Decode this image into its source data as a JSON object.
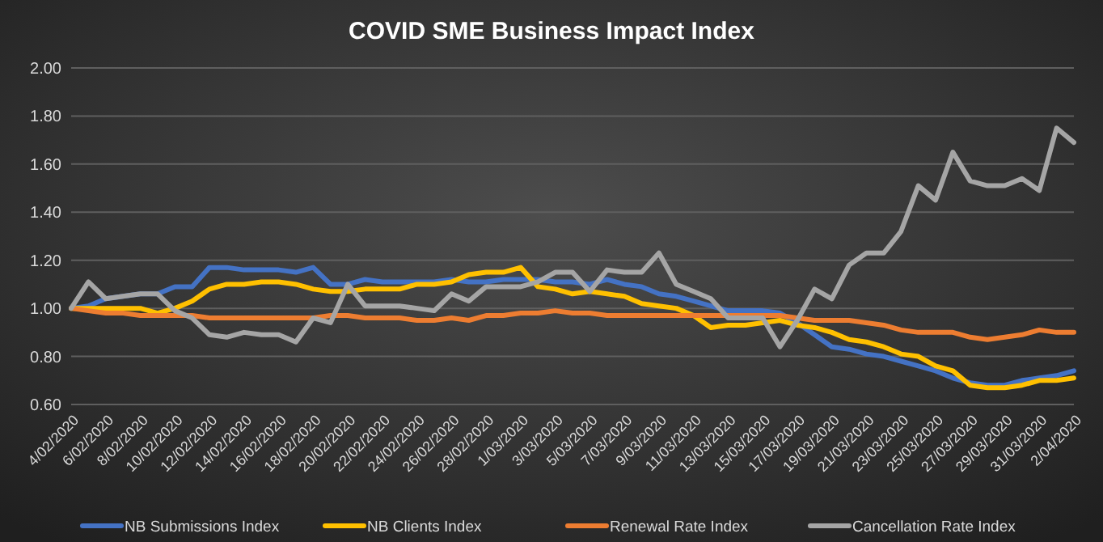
{
  "chart_data": {
    "type": "line",
    "title": "COVID SME Business Impact Index",
    "categories": [
      "4/02/2020",
      null,
      "6/02/2020",
      null,
      "8/02/2020",
      null,
      "10/02/2020",
      null,
      "12/02/2020",
      null,
      "14/02/2020",
      null,
      "16/02/2020",
      null,
      "18/02/2020",
      null,
      "20/02/2020",
      null,
      "22/02/2020",
      null,
      "24/02/2020",
      null,
      "26/02/2020",
      null,
      "28/02/2020",
      null,
      "1/03/2020",
      null,
      "3/03/2020",
      null,
      "5/03/2020",
      null,
      "7/03/2020",
      null,
      "9/03/2020",
      null,
      "11/03/2020",
      null,
      "13/03/2020",
      null,
      "15/03/2020",
      null,
      "17/03/2020",
      null,
      "19/03/2020",
      null,
      "21/03/2020",
      null,
      "23/03/2020",
      null,
      "25/03/2020",
      null,
      "27/03/2020",
      null,
      "29/03/2020",
      null,
      "31/03/2020",
      null,
      "2/04/2020"
    ],
    "series": [
      {
        "name": "NB Submissions Index",
        "color": "#4472c4",
        "values": [
          1.0,
          1.01,
          1.04,
          1.05,
          1.06,
          1.06,
          1.09,
          1.09,
          1.17,
          1.17,
          1.16,
          1.16,
          1.16,
          1.15,
          1.17,
          1.1,
          1.1,
          1.12,
          1.11,
          1.11,
          1.11,
          1.11,
          1.12,
          1.11,
          1.11,
          1.12,
          1.12,
          1.12,
          1.11,
          1.11,
          1.1,
          1.12,
          1.1,
          1.09,
          1.06,
          1.05,
          1.03,
          1.01,
          0.99,
          0.99,
          0.99,
          0.98,
          0.94,
          0.89,
          0.84,
          0.83,
          0.81,
          0.8,
          0.78,
          0.76,
          0.74,
          0.71,
          0.69,
          0.68,
          0.68,
          0.7,
          0.71,
          0.72,
          0.74
        ]
      },
      {
        "name": "NB Clients Index",
        "color": "#ffc000",
        "values": [
          1.0,
          1.0,
          1.0,
          1.0,
          1.0,
          0.98,
          1.0,
          1.03,
          1.08,
          1.1,
          1.1,
          1.11,
          1.11,
          1.1,
          1.08,
          1.07,
          1.07,
          1.08,
          1.08,
          1.08,
          1.1,
          1.1,
          1.11,
          1.14,
          1.15,
          1.15,
          1.17,
          1.09,
          1.08,
          1.06,
          1.07,
          1.06,
          1.05,
          1.02,
          1.01,
          1.0,
          0.97,
          0.92,
          0.93,
          0.93,
          0.94,
          0.95,
          0.93,
          0.92,
          0.9,
          0.87,
          0.86,
          0.84,
          0.81,
          0.8,
          0.76,
          0.74,
          0.68,
          0.67,
          0.67,
          0.68,
          0.7,
          0.7,
          0.71
        ]
      },
      {
        "name": "Renewal Rate Index",
        "color": "#ed7d31",
        "values": [
          1.0,
          0.99,
          0.98,
          0.98,
          0.97,
          0.97,
          0.97,
          0.97,
          0.96,
          0.96,
          0.96,
          0.96,
          0.96,
          0.96,
          0.96,
          0.97,
          0.97,
          0.96,
          0.96,
          0.96,
          0.95,
          0.95,
          0.96,
          0.95,
          0.97,
          0.97,
          0.98,
          0.98,
          0.99,
          0.98,
          0.98,
          0.97,
          0.97,
          0.97,
          0.97,
          0.97,
          0.97,
          0.97,
          0.97,
          0.97,
          0.97,
          0.97,
          0.96,
          0.95,
          0.95,
          0.95,
          0.94,
          0.93,
          0.91,
          0.9,
          0.9,
          0.9,
          0.88,
          0.87,
          0.88,
          0.89,
          0.91,
          0.9,
          0.9
        ]
      },
      {
        "name": "Cancellation Rate Index",
        "color": "#a5a5a5",
        "values": [
          1.0,
          1.11,
          1.04,
          1.05,
          1.06,
          1.06,
          0.99,
          0.96,
          0.89,
          0.88,
          0.9,
          0.89,
          0.89,
          0.86,
          0.96,
          0.94,
          1.1,
          1.01,
          1.01,
          1.01,
          1.0,
          0.99,
          1.06,
          1.03,
          1.09,
          1.09,
          1.09,
          1.11,
          1.15,
          1.15,
          1.07,
          1.16,
          1.15,
          1.15,
          1.23,
          1.1,
          1.07,
          1.04,
          0.96,
          0.96,
          0.96,
          0.84,
          0.95,
          1.08,
          1.04,
          1.18,
          1.23,
          1.23,
          1.32,
          1.51,
          1.45,
          1.65,
          1.53,
          1.51,
          1.51,
          1.54,
          1.49,
          1.75,
          1.69
        ]
      }
    ],
    "ylim": [
      0.6,
      2.0
    ],
    "yticks": [
      {
        "value": 0.6,
        "label": "0.60"
      },
      {
        "value": 0.8,
        "label": "0.80"
      },
      {
        "value": 1.0,
        "label": "1.00"
      },
      {
        "value": 1.2,
        "label": "1.20"
      },
      {
        "value": 1.4,
        "label": "1.40"
      },
      {
        "value": 1.6,
        "label": "1.60"
      },
      {
        "value": 1.8,
        "label": "1.80"
      },
      {
        "value": 2.0,
        "label": "2.00"
      }
    ],
    "grid": "y",
    "legend": "bottom",
    "marker": "none",
    "line_style": "solid"
  }
}
